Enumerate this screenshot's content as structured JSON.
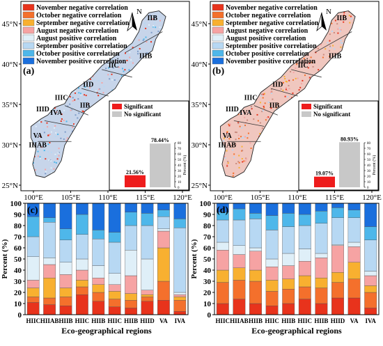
{
  "colors": {
    "neg_nov": "#e8331c",
    "neg_oct": "#f4702c",
    "neg_sep": "#f8b030",
    "neg_aug": "#f6a3a3",
    "pos_aug": "#dfeff8",
    "pos_sep": "#b7d8f3",
    "pos_oct": "#4eb7ea",
    "pos_nov": "#1a6fdd",
    "sig": "#ee1c1c",
    "nosig": "#c8c8c8",
    "land_a": "#7d9bc8",
    "land_b": "#c98a7e"
  },
  "legend_items": [
    {
      "label": "November negative correlation",
      "color_key": "neg_nov"
    },
    {
      "label": "October negative correlation",
      "color_key": "neg_oct"
    },
    {
      "label": "September negative correlation",
      "color_key": "neg_sep"
    },
    {
      "label": "August negative correlation",
      "color_key": "neg_aug"
    },
    {
      "label": "August positive correlation",
      "color_key": "pos_aug"
    },
    {
      "label": "September positive correlation",
      "color_key": "pos_sep"
    },
    {
      "label": "October positive correlation",
      "color_key": "pos_oct"
    },
    {
      "label": "November positive correlation",
      "color_key": "pos_nov"
    }
  ],
  "maps": [
    {
      "panel_label": "(a)",
      "north": "N",
      "lat_ticks": [
        "25°N",
        "30°N",
        "35°N",
        "40°N",
        "45°N"
      ],
      "lon_ticks": [
        "100°E",
        "105°E",
        "110°E",
        "115°E",
        "120°E"
      ],
      "regions": [
        "IIB",
        "IIIB",
        "IIC",
        "IID",
        "IIIC",
        "IIB",
        "IVA",
        "IIID",
        "VA",
        "IIIAB"
      ],
      "inset": {
        "legend_sig": "Significant",
        "legend_nosig": "No significant",
        "ylabel": "Percent (%)",
        "yticks": [
          "0",
          "10",
          "20",
          "30",
          "40",
          "50",
          "60",
          "70",
          "80"
        ],
        "significant": 21.56,
        "not_significant": 78.44,
        "sig_label": "21.56%",
        "nosig_label": "78.44%"
      }
    },
    {
      "panel_label": "(b)",
      "north": "N",
      "lat_ticks": [
        "25°N",
        "30°N",
        "35°N",
        "40°N",
        "45°N"
      ],
      "lon_ticks": [
        "100°E",
        "105°E",
        "110°E",
        "115°E",
        "120°E"
      ],
      "regions": [
        "IIB",
        "IIIB",
        "IIC",
        "IID",
        "IIIC",
        "IIB",
        "IVA",
        "IIID",
        "VA",
        "IIIAB"
      ],
      "inset": {
        "legend_sig": "Significant",
        "legend_nosig": "No significant",
        "ylabel": "Percent (%)",
        "yticks": [
          "0",
          "10",
          "20",
          "30",
          "40",
          "50",
          "60",
          "70",
          "80"
        ],
        "significant": 19.07,
        "not_significant": 80.93,
        "sig_label": "19.07%",
        "nosig_label": "80.93%"
      }
    }
  ],
  "chart_data": [
    {
      "type": "bar",
      "stacked": true,
      "panel_label": "(c)",
      "xlabel": "Eco-geographical regions",
      "ylabel": "Percent (%)",
      "ylim": [
        0,
        100
      ],
      "yticks": [
        0,
        10,
        20,
        30,
        40,
        50,
        60,
        70,
        80,
        90,
        100
      ],
      "categories": [
        "HIIC",
        "HIIAB",
        "HIIB",
        "HIIC",
        "HIIB",
        "HIIC",
        "HIIB",
        "HIID",
        "VA",
        "IVA"
      ],
      "series": [
        {
          "color_key": "neg_nov",
          "values": [
            11,
            9,
            8,
            18,
            12,
            7,
            6,
            12,
            13,
            3
          ]
        },
        {
          "color_key": "neg_oct",
          "values": [
            5,
            6,
            8,
            7,
            8,
            7,
            7,
            4,
            17,
            10
          ]
        },
        {
          "color_key": "neg_sep",
          "values": [
            8,
            18,
            8,
            6,
            7,
            7,
            6,
            2,
            30,
            3
          ]
        },
        {
          "color_key": "neg_aug",
          "values": [
            7,
            12,
            12,
            9,
            6,
            6,
            16,
            4,
            15,
            2
          ]
        },
        {
          "color_key": "pos_aug",
          "values": [
            21,
            6,
            11,
            10,
            11,
            10,
            23,
            28,
            2,
            2
          ]
        },
        {
          "color_key": "pos_sep",
          "values": [
            18,
            32,
            20,
            22,
            24,
            28,
            22,
            30,
            11,
            58
          ]
        },
        {
          "color_key": "pos_oct",
          "values": [
            18,
            4,
            10,
            18,
            8,
            9,
            12,
            11,
            6,
            8
          ]
        },
        {
          "color_key": "pos_nov",
          "values": [
            12,
            13,
            23,
            10,
            24,
            26,
            8,
            9,
            6,
            14
          ]
        }
      ]
    },
    {
      "type": "bar",
      "stacked": true,
      "panel_label": "(d)",
      "xlabel": "Eco-geographical regions",
      "ylabel": "Percent (%)",
      "ylim": [
        0,
        100
      ],
      "yticks": [
        0,
        10,
        20,
        30,
        40,
        50,
        60,
        70,
        80,
        90,
        100
      ],
      "categories": [
        "HIIC",
        "HIIAB",
        "HIIB",
        "HIIC",
        "HIIB",
        "HIIC",
        "HIIB",
        "HIID",
        "VA",
        "IVA"
      ],
      "series": [
        {
          "color_key": "neg_nov",
          "values": [
            10,
            14,
            10,
            8,
            10,
            14,
            10,
            15,
            15,
            6
          ]
        },
        {
          "color_key": "neg_oct",
          "values": [
            19,
            17,
            20,
            13,
            13,
            11,
            14,
            14,
            17,
            14
          ]
        },
        {
          "color_key": "neg_sep",
          "values": [
            11,
            11,
            10,
            10,
            9,
            10,
            9,
            9,
            15,
            6
          ]
        },
        {
          "color_key": "neg_aug",
          "values": [
            18,
            12,
            17,
            12,
            12,
            13,
            18,
            24,
            14,
            9
          ]
        },
        {
          "color_key": "pos_aug",
          "values": [
            7,
            8,
            3,
            7,
            11,
            11,
            4,
            1,
            4,
            4
          ]
        },
        {
          "color_key": "pos_sep",
          "values": [
            20,
            23,
            26,
            26,
            24,
            21,
            27,
            24,
            22,
            28
          ]
        },
        {
          "color_key": "pos_oct",
          "values": [
            7,
            10,
            5,
            13,
            12,
            10,
            11,
            9,
            7,
            12
          ]
        },
        {
          "color_key": "pos_nov",
          "values": [
            8,
            5,
            9,
            11,
            9,
            10,
            7,
            4,
            6,
            21
          ]
        }
      ]
    }
  ]
}
